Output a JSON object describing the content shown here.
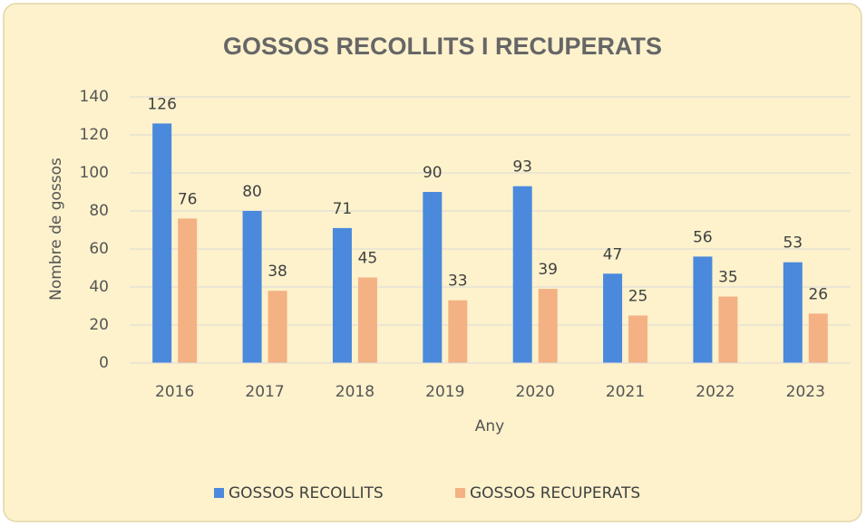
{
  "chart_data": {
    "type": "bar",
    "title": "GOSSOS RECOLLITS I RECUPERATS",
    "x_label": "Any",
    "y_label": "Nombre de gossos",
    "categories": [
      "2016",
      "2017",
      "2018",
      "2019",
      "2020",
      "2021",
      "2022",
      "2023"
    ],
    "series": [
      {
        "name": "GOSSOS RECOLLITS",
        "color": "#4a89dc",
        "values": [
          126,
          80,
          71,
          90,
          93,
          47,
          56,
          53
        ]
      },
      {
        "name": "GOSSOS RECUPERATS",
        "color": "#f4b183",
        "values": [
          76,
          38,
          45,
          33,
          39,
          25,
          35,
          26
        ]
      }
    ],
    "ylim": [
      0,
      140
    ],
    "yticks": [
      0,
      20,
      40,
      60,
      80,
      100,
      120,
      140
    ],
    "grid": true,
    "legend": "bottom"
  }
}
